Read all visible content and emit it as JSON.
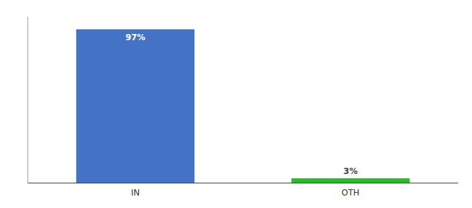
{
  "chart_data": {
    "type": "bar",
    "categories": [
      "IN",
      "OTH"
    ],
    "values": [
      97,
      3
    ],
    "value_labels": [
      "97%",
      "3%"
    ],
    "data_labels": true,
    "colors": [
      "#4472c4",
      "#21c221"
    ],
    "ylim": [
      0,
      105
    ],
    "yticks": [],
    "tick_labels": "x",
    "grid": false
  }
}
